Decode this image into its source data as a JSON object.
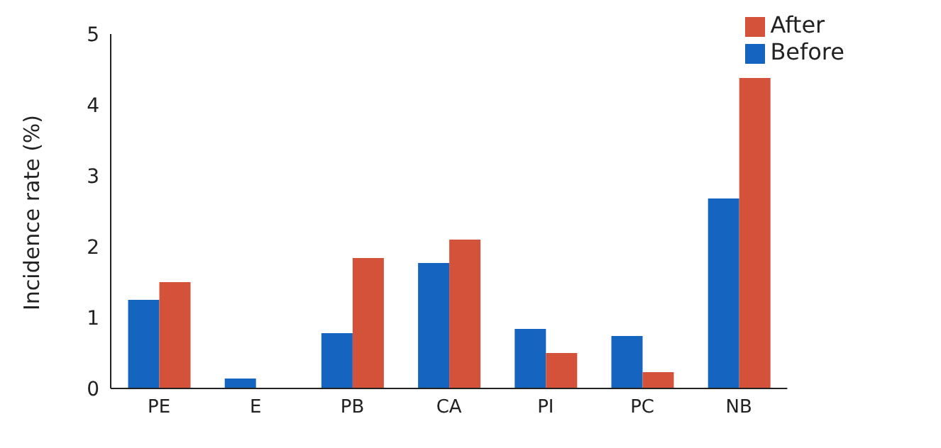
{
  "chart_data": {
    "type": "bar",
    "ylabel": "Incidence rate  (%)",
    "categories": [
      "PE",
      "E",
      "PB",
      "CA",
      "PI",
      "PC",
      "NB"
    ],
    "series": [
      {
        "name": "Before",
        "color": "#1565c0",
        "values": [
          1.25,
          0.14,
          0.78,
          1.77,
          0.84,
          0.74,
          2.68
        ]
      },
      {
        "name": "After",
        "color": "#d5523a",
        "values": [
          1.5,
          0,
          1.84,
          2.1,
          0.5,
          0.23,
          4.38
        ]
      }
    ],
    "ylim": [
      0,
      5
    ],
    "yticks": [
      0,
      1,
      2,
      3,
      4,
      5
    ],
    "grid": false,
    "legend": "top right"
  }
}
